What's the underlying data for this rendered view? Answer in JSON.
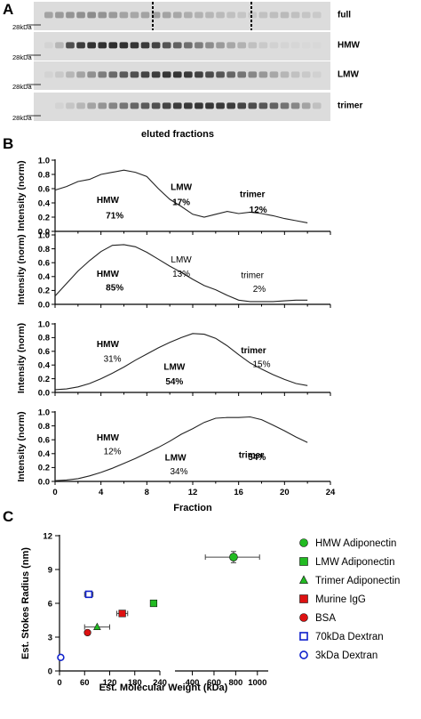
{
  "panels": {
    "A": "A",
    "B": "B",
    "C": "C"
  },
  "blot": {
    "marker": "28kDa",
    "xlabel": "eluted fractions",
    "lanes": [
      {
        "label": "full",
        "bands": [
          0.3,
          0.35,
          0.38,
          0.4,
          0.42,
          0.38,
          0.35,
          0.3,
          0.28,
          0.3,
          0.32,
          0.3,
          0.28,
          0.25,
          0.22,
          0.2,
          0.18,
          0.15,
          0.12,
          0.1,
          0.14,
          0.16,
          0.18,
          0.15,
          0.12,
          0.1
        ]
      },
      {
        "label": "HMW",
        "bands": [
          0.05,
          0.2,
          0.75,
          0.85,
          0.9,
          0.9,
          0.92,
          0.9,
          0.88,
          0.85,
          0.8,
          0.72,
          0.65,
          0.58,
          0.5,
          0.42,
          0.35,
          0.28,
          0.22,
          0.15,
          0.1,
          0.06,
          0.04,
          0.03,
          0.02,
          0.02
        ]
      },
      {
        "label": "LMW",
        "bands": [
          0.05,
          0.1,
          0.2,
          0.3,
          0.4,
          0.5,
          0.6,
          0.68,
          0.74,
          0.8,
          0.85,
          0.88,
          0.88,
          0.86,
          0.82,
          0.76,
          0.7,
          0.62,
          0.54,
          0.45,
          0.36,
          0.28,
          0.2,
          0.14,
          0.1,
          0.06
        ]
      },
      {
        "label": "trimer",
        "bands": [
          0.0,
          0.05,
          0.12,
          0.2,
          0.3,
          0.38,
          0.46,
          0.54,
          0.62,
          0.68,
          0.74,
          0.8,
          0.84,
          0.86,
          0.88,
          0.88,
          0.86,
          0.84,
          0.8,
          0.76,
          0.7,
          0.64,
          0.55,
          0.45,
          0.3,
          0.15
        ]
      }
    ]
  },
  "chart_data": [
    {
      "type": "line",
      "ylabel": "Intensity (norm)",
      "xlabel": "",
      "xlim": [
        0,
        24
      ],
      "ylim": [
        0,
        1.0
      ],
      "yticks": [
        "0.0",
        "0.2",
        "0.4",
        "0.6",
        "0.8",
        "1.0"
      ],
      "x": [
        0,
        1,
        2,
        3,
        4,
        5,
        6,
        7,
        8,
        9,
        10,
        11,
        12,
        13,
        14,
        15,
        16,
        17,
        18,
        19,
        20,
        21,
        22
      ],
      "series": [
        {
          "values": [
            0.58,
            0.63,
            0.7,
            0.73,
            0.8,
            0.83,
            0.86,
            0.83,
            0.77,
            0.6,
            0.45,
            0.35,
            0.24,
            0.2,
            0.24,
            0.28,
            0.25,
            0.27,
            0.25,
            0.22,
            0.18,
            0.15,
            0.12
          ]
        }
      ],
      "annotations": [
        {
          "text": "HMW",
          "x": 4.6,
          "y": 0.4,
          "bold": true
        },
        {
          "text": "71%",
          "x": 5.2,
          "y": 0.18,
          "bold": true
        },
        {
          "text": "LMW",
          "x": 11.0,
          "y": 0.58,
          "bold": true
        },
        {
          "text": "17%",
          "x": 11.0,
          "y": 0.37,
          "bold": true
        },
        {
          "text": "trimer",
          "x": 17.2,
          "y": 0.48,
          "bold": true
        },
        {
          "text": "12%",
          "x": 17.7,
          "y": 0.26,
          "bold": true
        }
      ]
    },
    {
      "type": "line",
      "ylabel": "Intensity (norm)",
      "xlabel": "",
      "xlim": [
        0,
        24
      ],
      "ylim": [
        0,
        1.0
      ],
      "yticks": [
        "0.0",
        "0.2",
        "0.4",
        "0.6",
        "0.8",
        "1.0"
      ],
      "x": [
        0,
        1,
        2,
        3,
        4,
        5,
        6,
        7,
        8,
        9,
        10,
        11,
        12,
        13,
        14,
        15,
        16,
        17,
        18,
        19,
        20,
        21,
        22
      ],
      "series": [
        {
          "values": [
            0.12,
            0.3,
            0.48,
            0.63,
            0.76,
            0.85,
            0.86,
            0.83,
            0.75,
            0.65,
            0.55,
            0.46,
            0.36,
            0.27,
            0.21,
            0.13,
            0.06,
            0.04,
            0.04,
            0.04,
            0.05,
            0.06,
            0.06
          ]
        }
      ],
      "annotations": [
        {
          "text": "HMW",
          "x": 4.6,
          "y": 0.4,
          "bold": true
        },
        {
          "text": "85%",
          "x": 5.2,
          "y": 0.2,
          "bold": true
        },
        {
          "text": "LMW",
          "x": 11.0,
          "y": 0.6,
          "bold": false
        },
        {
          "text": "13%",
          "x": 11.0,
          "y": 0.4,
          "bold": false
        },
        {
          "text": "trimer",
          "x": 17.2,
          "y": 0.38,
          "bold": false
        },
        {
          "text": "2%",
          "x": 17.8,
          "y": 0.18,
          "bold": false
        }
      ]
    },
    {
      "type": "line",
      "ylabel": "Intensity (norm)",
      "xlabel": "",
      "xlim": [
        0,
        24
      ],
      "ylim": [
        0,
        1.0
      ],
      "yticks": [
        "0.0",
        "0.2",
        "0.4",
        "0.6",
        "0.8",
        "1.0"
      ],
      "x": [
        0,
        1,
        2,
        3,
        4,
        5,
        6,
        7,
        8,
        9,
        10,
        11,
        12,
        13,
        14,
        15,
        16,
        17,
        18,
        19,
        20,
        21,
        22
      ],
      "series": [
        {
          "values": [
            0.04,
            0.05,
            0.08,
            0.13,
            0.2,
            0.28,
            0.37,
            0.47,
            0.56,
            0.65,
            0.73,
            0.8,
            0.86,
            0.85,
            0.79,
            0.68,
            0.55,
            0.43,
            0.34,
            0.26,
            0.19,
            0.13,
            0.1
          ]
        }
      ],
      "annotations": [
        {
          "text": "HMW",
          "x": 4.6,
          "y": 0.66,
          "bold": true
        },
        {
          "text": "31%",
          "x": 5.0,
          "y": 0.45,
          "bold": false
        },
        {
          "text": "LMW",
          "x": 10.4,
          "y": 0.33,
          "bold": true
        },
        {
          "text": "54%",
          "x": 10.4,
          "y": 0.12,
          "bold": true
        },
        {
          "text": "trimer",
          "x": 17.3,
          "y": 0.57,
          "bold": true
        },
        {
          "text": "15%",
          "x": 18.0,
          "y": 0.37,
          "bold": false
        }
      ]
    },
    {
      "type": "line",
      "ylabel": "Intensity (norm)",
      "xlabel": "Fraction",
      "xlim": [
        0,
        24
      ],
      "ylim": [
        0,
        1.0
      ],
      "yticks": [
        "0.0",
        "0.2",
        "0.4",
        "0.6",
        "0.8",
        "1.0"
      ],
      "xticks": [
        "0",
        "4",
        "8",
        "12",
        "16",
        "20",
        "24"
      ],
      "x": [
        0,
        1,
        2,
        3,
        4,
        5,
        6,
        7,
        8,
        9,
        10,
        11,
        12,
        13,
        14,
        15,
        16,
        17,
        18,
        19,
        20,
        21,
        22
      ],
      "series": [
        {
          "values": [
            0.01,
            0.02,
            0.04,
            0.08,
            0.13,
            0.19,
            0.26,
            0.33,
            0.41,
            0.49,
            0.58,
            0.68,
            0.76,
            0.85,
            0.91,
            0.92,
            0.92,
            0.93,
            0.89,
            0.81,
            0.73,
            0.64,
            0.56
          ]
        }
      ],
      "annotations": [
        {
          "text": "HMW",
          "x": 4.6,
          "y": 0.59,
          "bold": true
        },
        {
          "text": "12%",
          "x": 5.0,
          "y": 0.39,
          "bold": false
        },
        {
          "text": "LMW",
          "x": 10.5,
          "y": 0.3,
          "bold": true
        },
        {
          "text": "34%",
          "x": 10.8,
          "y": 0.1,
          "bold": false
        },
        {
          "text": "trimer",
          "x": 17.1,
          "y": 0.34,
          "bold": true
        },
        {
          "text": "54%",
          "x": 17.6,
          "y": 0.31,
          "bold": true
        }
      ]
    },
    {
      "type": "scatter",
      "xlabel": "Est. Molecular Weight (kDa)",
      "ylabel": "Est. Stokes Radius  (nm)",
      "ylim": [
        0,
        12
      ],
      "yticks": [
        "0",
        "3",
        "6",
        "9",
        "12"
      ],
      "x_segments": [
        [
          0,
          240
        ],
        [
          240,
          1100
        ]
      ],
      "xticks": [
        "0",
        "60",
        "120",
        "180",
        "240",
        "400",
        "600",
        "800",
        "1000"
      ],
      "series": [
        {
          "name": "HMW Adiponectin",
          "marker": "circle-filled",
          "color": "#22bb22",
          "x": 780,
          "y": 10.1,
          "xerr": [
            520,
            1020
          ],
          "yerr": [
            9.6,
            10.6
          ]
        },
        {
          "name": "LMW Adiponectin",
          "marker": "square-filled",
          "color": "#22bb22",
          "x": 225,
          "y": 6.0,
          "xerr": null,
          "yerr": null
        },
        {
          "name": "Trimer Adiponectin",
          "marker": "triangle-filled",
          "color": "#22bb22",
          "x": 90,
          "y": 3.9,
          "xerr": [
            60,
            120
          ],
          "yerr": null
        },
        {
          "name": "Murine IgG",
          "marker": "square-filled",
          "color": "#dd1111",
          "x": 150,
          "y": 5.1,
          "xerr": [
            137,
            163
          ],
          "yerr": null
        },
        {
          "name": "BSA",
          "marker": "circle-filled",
          "color": "#dd1111",
          "x": 67,
          "y": 3.4,
          "xerr": null,
          "yerr": null
        },
        {
          "name": "70kDa Dextran",
          "marker": "square-open",
          "color": "#1122cc",
          "x": 70,
          "y": 6.8,
          "xerr": [
            60,
            80
          ],
          "yerr": null
        },
        {
          "name": "3kDa Dextran",
          "marker": "circle-open",
          "color": "#1122cc",
          "x": 3,
          "y": 1.2,
          "xerr": null,
          "yerr": null
        }
      ]
    }
  ]
}
